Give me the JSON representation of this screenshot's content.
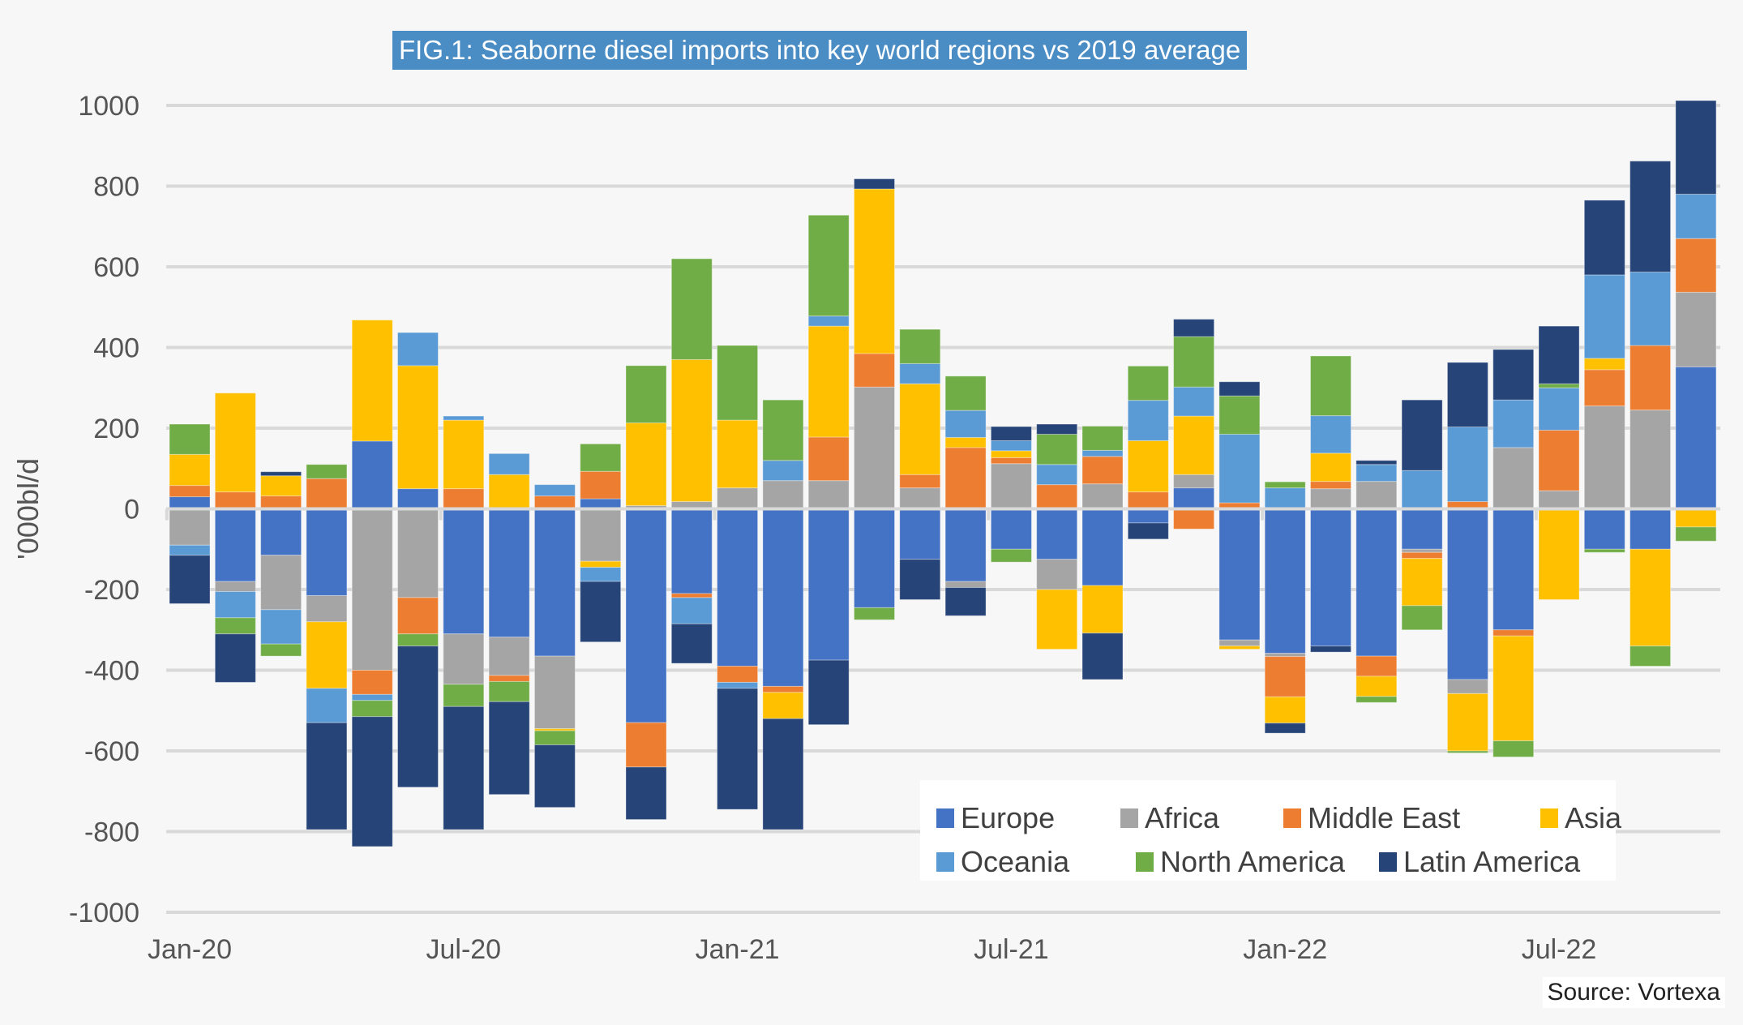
{
  "title": "FIG.1: Seaborne diesel imports into key world regions vs 2019 average",
  "source": "Source: Vortexa",
  "chart_data": {
    "type": "bar",
    "stacked": true,
    "title": "FIG.1: Seaborne diesel imports into key world regions vs 2019 average",
    "xlabel": "",
    "ylabel": "'000bl/d",
    "ylim": [
      -1000,
      1000
    ],
    "yticks": [
      1000,
      800,
      600,
      400,
      200,
      0,
      -200,
      -400,
      -600,
      -800,
      -1000
    ],
    "xtick_labels": [
      {
        "index": 0,
        "label": "Jan-20"
      },
      {
        "index": 6,
        "label": "Jul-20"
      },
      {
        "index": 12,
        "label": "Jan-21"
      },
      {
        "index": 18,
        "label": "Jul-21"
      },
      {
        "index": 24,
        "label": "Jan-22"
      },
      {
        "index": 30,
        "label": "Jul-22"
      }
    ],
    "grid": true,
    "legend_position": "bottom-right",
    "categories": [
      "Jan-20",
      "Feb-20",
      "Mar-20",
      "Apr-20",
      "May-20",
      "Jun-20",
      "Jul-20",
      "Aug-20",
      "Sep-20",
      "Oct-20",
      "Nov-20",
      "Dec-20",
      "Jan-21",
      "Feb-21",
      "Mar-21",
      "Apr-21",
      "May-21",
      "Jun-21",
      "Jul-21",
      "Aug-21",
      "Sep-21",
      "Oct-21",
      "Nov-21",
      "Dec-21",
      "Jan-22",
      "Feb-22",
      "Mar-22",
      "Apr-22",
      "May-22",
      "Jun-22",
      "Jul-22",
      "Aug-22",
      "Sep-22",
      "Oct-22"
    ],
    "series": [
      {
        "name": "Europe",
        "color": "#4472c4",
        "values": [
          30,
          -180,
          -115,
          -215,
          168,
          50,
          -310,
          -318,
          -365,
          25,
          -530,
          -210,
          -390,
          -440,
          -375,
          -245,
          -125,
          -180,
          -100,
          -125,
          -190,
          -35,
          52,
          -325,
          -358,
          -340,
          -365,
          -100,
          -423,
          -300,
          0,
          -100,
          -100,
          352
        ]
      },
      {
        "name": "Africa",
        "color": "#a5a5a5",
        "values": [
          -90,
          -25,
          -135,
          -65,
          -400,
          -220,
          -125,
          -95,
          -180,
          -130,
          8,
          18,
          52,
          70,
          70,
          302,
          52,
          -15,
          112,
          -75,
          62,
          0,
          33,
          -15,
          -8,
          50,
          68,
          -8,
          -35,
          152,
          45,
          255,
          245,
          185
        ]
      },
      {
        "name": "Middle East",
        "color": "#ed7d31",
        "values": [
          28,
          42,
          32,
          75,
          -60,
          -90,
          50,
          -15,
          32,
          68,
          -110,
          -10,
          -40,
          -15,
          108,
          83,
          33,
          152,
          15,
          60,
          68,
          42,
          -50,
          15,
          -100,
          18,
          -50,
          -15,
          18,
          -15,
          150,
          90,
          160,
          133
        ]
      },
      {
        "name": "Asia",
        "color": "#ffc000",
        "values": [
          77,
          245,
          50,
          -165,
          300,
          305,
          170,
          85,
          -5,
          -15,
          205,
          352,
          168,
          -65,
          275,
          408,
          225,
          25,
          17,
          -148,
          -118,
          127,
          145,
          -8,
          -65,
          70,
          -50,
          -117,
          -142,
          -260,
          -225,
          28,
          -240,
          -45
        ]
      },
      {
        "name": "Oceania",
        "color": "#5b9bd5",
        "values": [
          -25,
          -65,
          -85,
          -85,
          -15,
          82,
          10,
          52,
          28,
          -35,
          0,
          -65,
          -15,
          50,
          25,
          0,
          50,
          67,
          25,
          50,
          15,
          100,
          72,
          170,
          52,
          93,
          42,
          95,
          185,
          118,
          105,
          207,
          182,
          110
        ]
      },
      {
        "name": "North America",
        "color": "#70ad47",
        "values": [
          75,
          -40,
          -30,
          35,
          -40,
          -30,
          -55,
          -50,
          -35,
          68,
          142,
          250,
          185,
          150,
          250,
          -30,
          85,
          85,
          -32,
          75,
          60,
          85,
          125,
          95,
          15,
          148,
          -15,
          -60,
          -5,
          -40,
          10,
          -8,
          -50,
          -35
        ]
      },
      {
        "name": "Latin America",
        "color": "#264478",
        "values": [
          -120,
          -120,
          10,
          -265,
          -322,
          -350,
          -305,
          -230,
          -155,
          -150,
          -130,
          -98,
          -300,
          -275,
          -160,
          25,
          -100,
          -70,
          35,
          25,
          -115,
          -40,
          43,
          35,
          -25,
          -15,
          10,
          175,
          160,
          125,
          143,
          185,
          275,
          232
        ]
      }
    ]
  }
}
